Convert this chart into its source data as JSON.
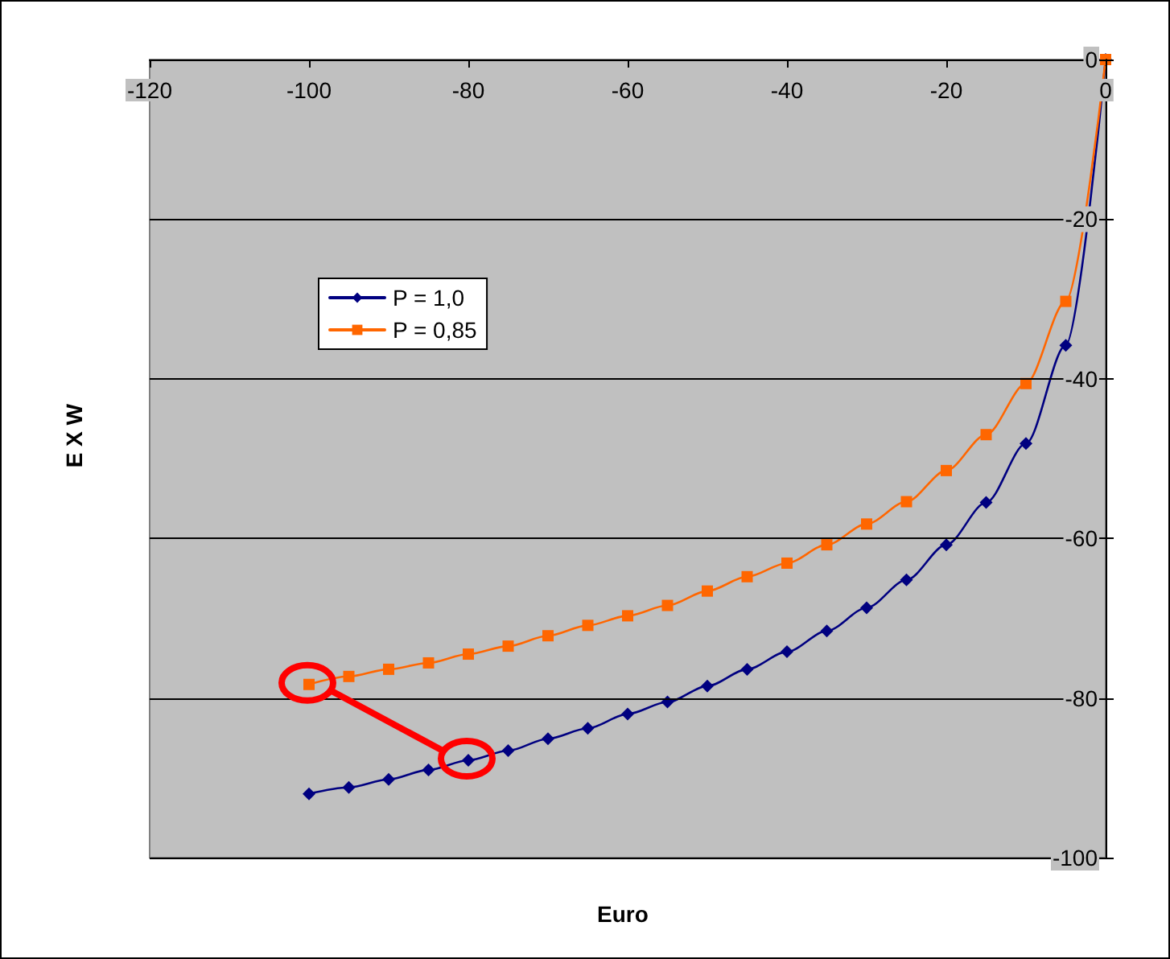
{
  "chart_data": {
    "type": "line",
    "xlabel": "Euro",
    "ylabel": "E X W",
    "x": [
      -100,
      -95,
      -90,
      -85,
      -80,
      -75,
      -70,
      -65,
      -60,
      -55,
      -50,
      -45,
      -40,
      -35,
      -30,
      -25,
      -20,
      -15,
      -10,
      -5,
      0
    ],
    "series": [
      {
        "name": "P = 1,0",
        "color": "#000080",
        "marker": "diamond",
        "values": [
          -92,
          -91.2,
          -90.2,
          -89,
          -87.8,
          -86.6,
          -85.1,
          -83.8,
          -82,
          -80.5,
          -78.5,
          -76.4,
          -74.2,
          -71.6,
          -68.7,
          -65.2,
          -60.8,
          -55.5,
          -48.1,
          -35.8,
          0
        ]
      },
      {
        "name": "P = 0,85",
        "color": "#ff6600",
        "marker": "square",
        "values": [
          -78.3,
          -77.3,
          -76.4,
          -75.6,
          -74.5,
          -73.5,
          -72.2,
          -70.9,
          -69.7,
          -68.4,
          -66.6,
          -64.8,
          -63.1,
          -60.8,
          -58.2,
          -55.4,
          -51.5,
          -47,
          -40.6,
          -30.3,
          0
        ]
      }
    ],
    "xlim": [
      -120,
      0
    ],
    "xticks": [
      -120,
      -100,
      -80,
      -60,
      -40,
      -20,
      0
    ],
    "ylim": [
      -100,
      0
    ],
    "yticks": [
      -100,
      -80,
      -60,
      -40,
      -20,
      0
    ],
    "grid": "y",
    "legend": "left",
    "line_style": "solid"
  }
}
